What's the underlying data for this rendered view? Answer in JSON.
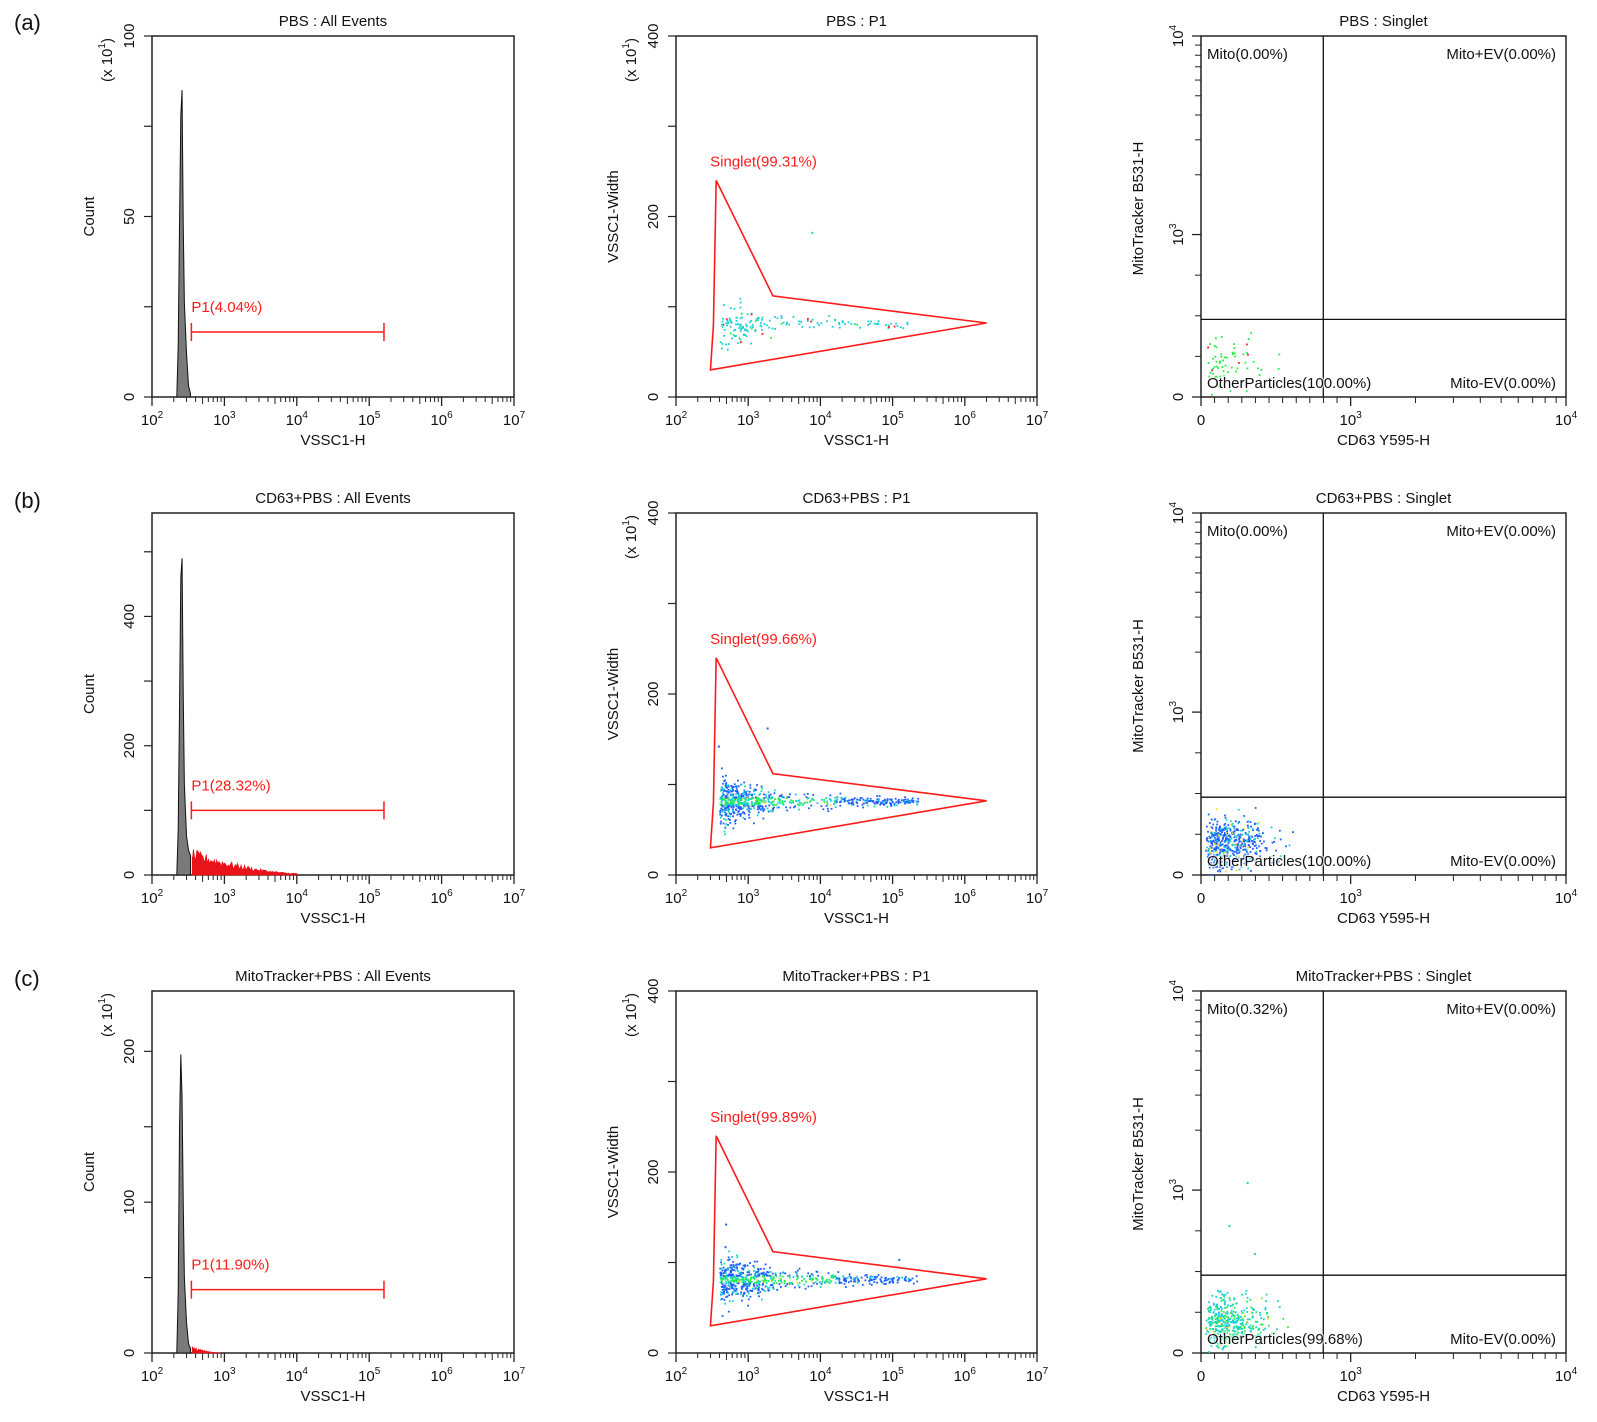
{
  "figure": {
    "rows": [
      {
        "label": "(a)",
        "sample": "PBS"
      },
      {
        "label": "(b)",
        "sample": "CD63+PBS"
      },
      {
        "label": "(c)",
        "sample": "MitoTracker+PBS"
      }
    ]
  },
  "chart_data": [
    {
      "type": "histogram",
      "row": "(a)",
      "title": "PBS : All Events",
      "xlabel": "VSSC1-H",
      "ylabel": "Count",
      "ymultiplier": "(x 10^1)",
      "xscale": "log",
      "xlim": [
        100,
        10000000
      ],
      "xticks": [
        "10^2",
        "10^3",
        "10^4",
        "10^5",
        "10^6",
        "10^7"
      ],
      "ylim": [
        0,
        100
      ],
      "yticks": [
        0,
        50,
        100
      ],
      "peak": {
        "x": 250,
        "y": 85
      },
      "bins_x": [
        220,
        230,
        240,
        250,
        260,
        270,
        280,
        300,
        320,
        340,
        360
      ],
      "bins_y": [
        0,
        14,
        48,
        78,
        85,
        48,
        26,
        12,
        3,
        1,
        0
      ],
      "gate": {
        "name": "P1",
        "percent": "4.04%",
        "label": "P1(4.04%)",
        "x_range": [
          350,
          160000
        ],
        "y_level": 18
      }
    },
    {
      "type": "scatter",
      "row": "(a)",
      "title": "PBS : P1",
      "xlabel": "VSSC1-H",
      "ylabel": "VSSC1-Width",
      "ymultiplier": "(x 10^1)",
      "xscale": "log",
      "xlim": [
        100,
        10000000
      ],
      "xticks": [
        "10^2",
        "10^3",
        "10^4",
        "10^5",
        "10^6",
        "10^7"
      ],
      "ylim": [
        0,
        400
      ],
      "yticks": [
        0,
        200,
        400
      ],
      "gate": {
        "name": "Singlet",
        "percent": "99.31%",
        "label": "Singlet(99.31%)",
        "polygon": [
          [
            300,
            30
          ],
          [
            330,
            80
          ],
          [
            360,
            240
          ],
          [
            2200,
            112
          ],
          [
            2000000,
            82
          ],
          [
            300,
            30
          ]
        ]
      },
      "cluster": {
        "x_center": 700,
        "y_center": 82,
        "density": "low",
        "n_points": 160
      },
      "outliers": [
        [
          7500,
          183
        ]
      ]
    },
    {
      "type": "scatter",
      "row": "(a)",
      "title": "PBS : Singlet",
      "xlabel": "CD63 Y595-H",
      "ylabel": "MitoTracker B531-H",
      "xticks": [
        "0",
        "10^3",
        "10^4"
      ],
      "yticks": [
        "0",
        "10^3",
        "10^4"
      ],
      "quadrant_split": {
        "x": 700,
        "y": 450
      },
      "quadrants": [
        {
          "name": "Mito",
          "percent": "0.00%",
          "label": "Mito(0.00%)",
          "position": "top-left"
        },
        {
          "name": "Mito+EV",
          "percent": "0.00%",
          "label": "Mito+EV(0.00%)",
          "position": "top-right"
        },
        {
          "name": "OtherParticles",
          "percent": "100.00%",
          "label": "OtherParticles(100.00%)",
          "position": "bottom-left"
        },
        {
          "name": "Mito-EV",
          "percent": "0.00%",
          "label": "Mito-EV(0.00%)",
          "position": "bottom-right"
        }
      ],
      "cluster": {
        "density": "low",
        "n_points": 70
      }
    },
    {
      "type": "histogram",
      "row": "(b)",
      "title": "CD63+PBS : All Events",
      "xlabel": "VSSC1-H",
      "ylabel": "Count",
      "ymultiplier": "",
      "xscale": "log",
      "xlim": [
        100,
        10000000
      ],
      "xticks": [
        "10^2",
        "10^3",
        "10^4",
        "10^5",
        "10^6",
        "10^7"
      ],
      "ylim": [
        0,
        560
      ],
      "yticks": [
        0,
        200,
        400
      ],
      "peak": {
        "x": 250,
        "y": 490
      },
      "bins_x": [
        220,
        230,
        240,
        250,
        260,
        270,
        280,
        300,
        320,
        340,
        360
      ],
      "bins_y": [
        0,
        70,
        260,
        460,
        490,
        280,
        140,
        60,
        38,
        30,
        28
      ],
      "tail": {
        "x_range": [
          360,
          10000
        ],
        "y_start": 28,
        "y_end": 2
      },
      "gate": {
        "name": "P1",
        "percent": "28.32%",
        "label": "P1(28.32%)",
        "x_range": [
          350,
          160000
        ],
        "y_level": 100
      }
    },
    {
      "type": "scatter",
      "row": "(b)",
      "title": "CD63+PBS : P1",
      "xlabel": "VSSC1-H",
      "ylabel": "VSSC1-Width",
      "ymultiplier": "(x 10^1)",
      "xscale": "log",
      "xlim": [
        100,
        10000000
      ],
      "xticks": [
        "10^2",
        "10^3",
        "10^4",
        "10^5",
        "10^6",
        "10^7"
      ],
      "ylim": [
        0,
        400
      ],
      "yticks": [
        0,
        200,
        400
      ],
      "gate": {
        "name": "Singlet",
        "percent": "99.66%",
        "label": "Singlet(99.66%)",
        "polygon": [
          [
            300,
            30
          ],
          [
            330,
            80
          ],
          [
            360,
            240
          ],
          [
            2200,
            112
          ],
          [
            2000000,
            82
          ],
          [
            300,
            30
          ]
        ]
      },
      "cluster": {
        "x_center": 700,
        "y_center": 82,
        "density": "high",
        "n_points": 700
      },
      "outliers": [
        [
          1800,
          163
        ],
        [
          380,
          143
        ]
      ]
    },
    {
      "type": "scatter",
      "row": "(b)",
      "title": "CD63+PBS : Singlet",
      "xlabel": "CD63 Y595-H",
      "ylabel": "MitoTracker B531-H",
      "xticks": [
        "0",
        "10^3",
        "10^4"
      ],
      "yticks": [
        "0",
        "10^3",
        "10^4"
      ],
      "quadrant_split": {
        "x": 700,
        "y": 450
      },
      "quadrants": [
        {
          "name": "Mito",
          "percent": "0.00%",
          "label": "Mito(0.00%)",
          "position": "top-left"
        },
        {
          "name": "Mito+EV",
          "percent": "0.00%",
          "label": "Mito+EV(0.00%)",
          "position": "top-right"
        },
        {
          "name": "OtherParticles",
          "percent": "100.00%",
          "label": "OtherParticles(100.00%)",
          "position": "bottom-left"
        },
        {
          "name": "Mito-EV",
          "percent": "0.00%",
          "label": "Mito-EV(0.00%)",
          "position": "bottom-right"
        }
      ],
      "cluster": {
        "density": "high",
        "n_points": 500
      }
    },
    {
      "type": "histogram",
      "row": "(c)",
      "title": "MitoTracker+PBS : All Events",
      "xlabel": "VSSC1-H",
      "ylabel": "Count",
      "ymultiplier": "(x 10^1)",
      "xscale": "log",
      "xlim": [
        100,
        10000000
      ],
      "xticks": [
        "10^2",
        "10^3",
        "10^4",
        "10^5",
        "10^6",
        "10^7"
      ],
      "ylim": [
        0,
        240
      ],
      "yticks": [
        0,
        100,
        200
      ],
      "peak": {
        "x": 250,
        "y": 198
      },
      "bins_x": [
        220,
        230,
        240,
        250,
        260,
        270,
        280,
        300,
        320,
        340,
        360
      ],
      "bins_y": [
        0,
        40,
        150,
        198,
        170,
        100,
        50,
        20,
        6,
        3,
        2
      ],
      "tail": {
        "x_range": [
          360,
          900
        ],
        "y_start": 3,
        "y_end": 0
      },
      "gate": {
        "name": "P1",
        "percent": "11.90%",
        "label": "P1(11.90%)",
        "x_range": [
          350,
          160000
        ],
        "y_level": 42
      }
    },
    {
      "type": "scatter",
      "row": "(c)",
      "title": "MitoTracker+PBS : P1",
      "xlabel": "VSSC1-H",
      "ylabel": "VSSC1-Width",
      "ymultiplier": "(x 10^1)",
      "xscale": "log",
      "xlim": [
        100,
        10000000
      ],
      "xticks": [
        "10^2",
        "10^3",
        "10^4",
        "10^5",
        "10^6",
        "10^7"
      ],
      "ylim": [
        0,
        400
      ],
      "yticks": [
        0,
        200,
        400
      ],
      "gate": {
        "name": "Singlet",
        "percent": "99.89%",
        "label": "Singlet(99.89%)",
        "polygon": [
          [
            300,
            30
          ],
          [
            330,
            80
          ],
          [
            360,
            240
          ],
          [
            2200,
            112
          ],
          [
            2000000,
            82
          ],
          [
            300,
            30
          ]
        ]
      },
      "cluster": {
        "x_center": 700,
        "y_center": 82,
        "density": "high",
        "n_points": 650
      },
      "outliers": [
        [
          480,
          143
        ],
        [
          470,
          118
        ],
        [
          120000,
          104
        ]
      ]
    },
    {
      "type": "scatter",
      "row": "(c)",
      "title": "MitoTracker+PBS : Singlet",
      "xlabel": "CD63 Y595-H",
      "ylabel": "MitoTracker B531-H",
      "xticks": [
        "0",
        "10^3",
        "10^4"
      ],
      "yticks": [
        "0",
        "10^3",
        "10^4"
      ],
      "quadrant_split": {
        "x": 700,
        "y": 450
      },
      "quadrants": [
        {
          "name": "Mito",
          "percent": "0.32%",
          "label": "Mito(0.32%)",
          "position": "top-left"
        },
        {
          "name": "Mito+EV",
          "percent": "0.00%",
          "label": "Mito+EV(0.00%)",
          "position": "top-right"
        },
        {
          "name": "OtherParticles",
          "percent": "99.68%",
          "label": "OtherParticles(99.68%)",
          "position": "bottom-left"
        },
        {
          "name": "Mito-EV",
          "percent": "0.00%",
          "label": "Mito-EV(0.00%)",
          "position": "bottom-right"
        }
      ],
      "cluster": {
        "density": "medium",
        "n_points": 400
      },
      "outliers": [
        [
          330,
          900
        ],
        [
          200,
          650
        ],
        [
          380,
          520
        ]
      ]
    }
  ],
  "colors": {
    "gate": "#ff1a1a",
    "hist_fill": "#7a7a7a",
    "hist_gated_fill": "#e8141a",
    "axis": "#222222",
    "density_low": "#1f5fff",
    "density_mid": "#18d0d0",
    "density_high": "#22ee44",
    "density_peak": "#f0e030"
  }
}
